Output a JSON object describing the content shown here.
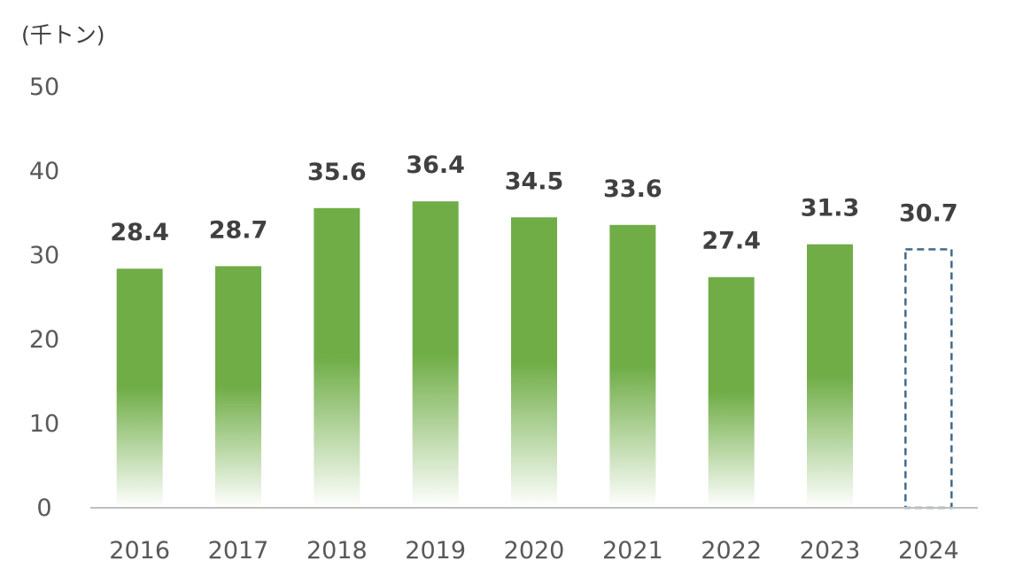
{
  "chart_data": {
    "type": "bar",
    "unit_label": "(千トン)",
    "categories": [
      "2016",
      "2017",
      "2018",
      "2019",
      "2020",
      "2021",
      "2022",
      "2023",
      "2024"
    ],
    "values": [
      28.4,
      28.7,
      35.6,
      36.4,
      34.5,
      33.6,
      27.4,
      31.3,
      30.7
    ],
    "value_labels": [
      "28.4",
      "28.7",
      "35.6",
      "36.4",
      "34.5",
      "33.6",
      "27.4",
      "31.3",
      "30.7"
    ],
    "estimated_categories": [
      "2024"
    ],
    "ylim": [
      0,
      50
    ],
    "yticks": [
      0,
      10,
      20,
      30,
      40,
      50
    ],
    "grid": false,
    "colors": {
      "bar": "#70AD47",
      "bar_fade": "#ffffff",
      "estimate_outline": "#41698E",
      "axis": "#BFBFBF",
      "tick_text": "#595959",
      "value_text": "#404040"
    }
  }
}
